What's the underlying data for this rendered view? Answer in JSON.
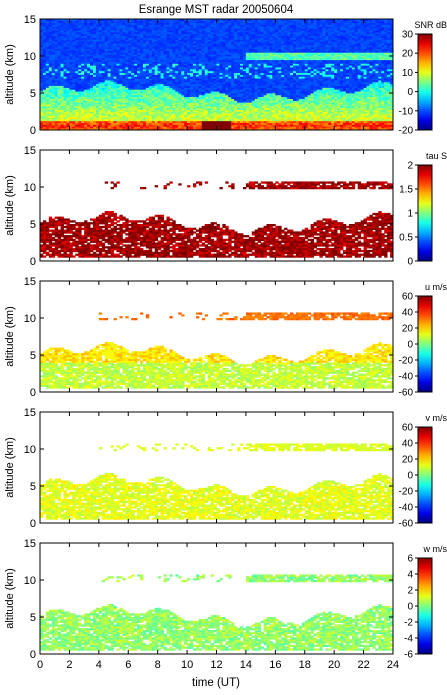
{
  "chart_data": {
    "type": "heatmap",
    "title": "Esrange MST radar 20050604",
    "xlabel": "time (UT)",
    "xlim": [
      0,
      24
    ],
    "xticks": [
      "0",
      "2",
      "4",
      "6",
      "8",
      "10",
      "12",
      "14",
      "16",
      "18",
      "20",
      "22",
      "24"
    ],
    "panels": [
      {
        "id": "snr",
        "ylabel": "altitude (km)",
        "ylim": [
          0,
          15
        ],
        "yticks": [
          "0",
          "5",
          "10",
          "15"
        ],
        "colorbar_label": "SNR dB",
        "clim": [
          -20,
          30
        ],
        "cticks": [
          "-20",
          "-10",
          "0",
          "10",
          "20",
          "30"
        ],
        "background": "#1a3fd8"
      },
      {
        "id": "tau",
        "ylabel": "altitude (km)",
        "ylim": [
          0,
          15
        ],
        "yticks": [
          "0",
          "5",
          "10",
          "15"
        ],
        "colorbar_label": "tau S",
        "clim": [
          0,
          2
        ],
        "cticks": [
          "0",
          "0.5",
          "1",
          "1.5",
          "2"
        ],
        "background": "#ffffff"
      },
      {
        "id": "u",
        "ylabel": "altitude (km)",
        "ylim": [
          0,
          15
        ],
        "yticks": [
          "0",
          "5",
          "10",
          "15"
        ],
        "colorbar_label": "u m/s",
        "clim": [
          -60,
          60
        ],
        "cticks": [
          "-60",
          "-40",
          "-20",
          "0",
          "20",
          "40",
          "60"
        ],
        "background": "#ffffff"
      },
      {
        "id": "v",
        "ylabel": "altitude (km)",
        "ylim": [
          0,
          15
        ],
        "yticks": [
          "0",
          "5",
          "10",
          "15"
        ],
        "colorbar_label": "v m/s",
        "clim": [
          -60,
          60
        ],
        "cticks": [
          "-60",
          "-40",
          "-20",
          "0",
          "20",
          "40",
          "60"
        ],
        "background": "#ffffff"
      },
      {
        "id": "w",
        "ylabel": "altitude (km)",
        "ylim": [
          0,
          15
        ],
        "yticks": [
          "0",
          "5",
          "10",
          "15"
        ],
        "colorbar_label": "w m/s",
        "clim": [
          -6,
          6
        ],
        "cticks": [
          "-6",
          "-4",
          "-2",
          "0",
          "2",
          "4",
          "6"
        ],
        "background": "#ffffff"
      }
    ]
  }
}
